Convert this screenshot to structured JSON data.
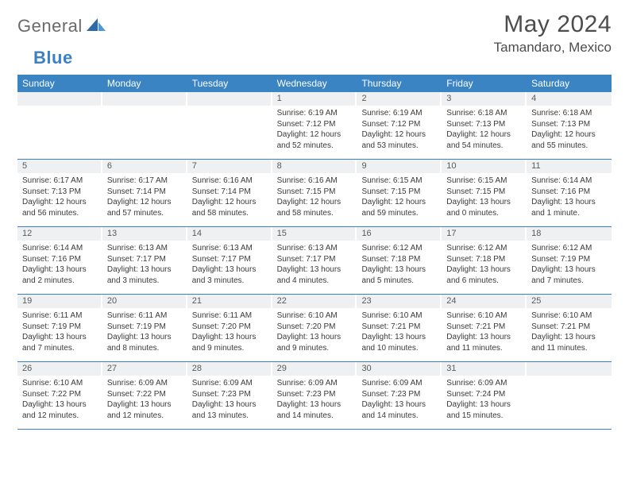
{
  "logo": {
    "text_gray": "General",
    "text_blue": "Blue"
  },
  "title": "May 2024",
  "location": "Tamandaro, Mexico",
  "colors": {
    "header_bg": "#3b84c4",
    "header_text": "#ffffff",
    "daybar_bg": "#eef0f2",
    "row_border": "#3b7fc4",
    "body_text": "#3a3a3a"
  },
  "day_names": [
    "Sunday",
    "Monday",
    "Tuesday",
    "Wednesday",
    "Thursday",
    "Friday",
    "Saturday"
  ],
  "weeks": [
    [
      null,
      null,
      null,
      {
        "n": "1",
        "sr": "6:19 AM",
        "ss": "7:12 PM",
        "dl": "12 hours and 52 minutes."
      },
      {
        "n": "2",
        "sr": "6:19 AM",
        "ss": "7:12 PM",
        "dl": "12 hours and 53 minutes."
      },
      {
        "n": "3",
        "sr": "6:18 AM",
        "ss": "7:13 PM",
        "dl": "12 hours and 54 minutes."
      },
      {
        "n": "4",
        "sr": "6:18 AM",
        "ss": "7:13 PM",
        "dl": "12 hours and 55 minutes."
      }
    ],
    [
      {
        "n": "5",
        "sr": "6:17 AM",
        "ss": "7:13 PM",
        "dl": "12 hours and 56 minutes."
      },
      {
        "n": "6",
        "sr": "6:17 AM",
        "ss": "7:14 PM",
        "dl": "12 hours and 57 minutes."
      },
      {
        "n": "7",
        "sr": "6:16 AM",
        "ss": "7:14 PM",
        "dl": "12 hours and 58 minutes."
      },
      {
        "n": "8",
        "sr": "6:16 AM",
        "ss": "7:15 PM",
        "dl": "12 hours and 58 minutes."
      },
      {
        "n": "9",
        "sr": "6:15 AM",
        "ss": "7:15 PM",
        "dl": "12 hours and 59 minutes."
      },
      {
        "n": "10",
        "sr": "6:15 AM",
        "ss": "7:15 PM",
        "dl": "13 hours and 0 minutes."
      },
      {
        "n": "11",
        "sr": "6:14 AM",
        "ss": "7:16 PM",
        "dl": "13 hours and 1 minute."
      }
    ],
    [
      {
        "n": "12",
        "sr": "6:14 AM",
        "ss": "7:16 PM",
        "dl": "13 hours and 2 minutes."
      },
      {
        "n": "13",
        "sr": "6:13 AM",
        "ss": "7:17 PM",
        "dl": "13 hours and 3 minutes."
      },
      {
        "n": "14",
        "sr": "6:13 AM",
        "ss": "7:17 PM",
        "dl": "13 hours and 3 minutes."
      },
      {
        "n": "15",
        "sr": "6:13 AM",
        "ss": "7:17 PM",
        "dl": "13 hours and 4 minutes."
      },
      {
        "n": "16",
        "sr": "6:12 AM",
        "ss": "7:18 PM",
        "dl": "13 hours and 5 minutes."
      },
      {
        "n": "17",
        "sr": "6:12 AM",
        "ss": "7:18 PM",
        "dl": "13 hours and 6 minutes."
      },
      {
        "n": "18",
        "sr": "6:12 AM",
        "ss": "7:19 PM",
        "dl": "13 hours and 7 minutes."
      }
    ],
    [
      {
        "n": "19",
        "sr": "6:11 AM",
        "ss": "7:19 PM",
        "dl": "13 hours and 7 minutes."
      },
      {
        "n": "20",
        "sr": "6:11 AM",
        "ss": "7:19 PM",
        "dl": "13 hours and 8 minutes."
      },
      {
        "n": "21",
        "sr": "6:11 AM",
        "ss": "7:20 PM",
        "dl": "13 hours and 9 minutes."
      },
      {
        "n": "22",
        "sr": "6:10 AM",
        "ss": "7:20 PM",
        "dl": "13 hours and 9 minutes."
      },
      {
        "n": "23",
        "sr": "6:10 AM",
        "ss": "7:21 PM",
        "dl": "13 hours and 10 minutes."
      },
      {
        "n": "24",
        "sr": "6:10 AM",
        "ss": "7:21 PM",
        "dl": "13 hours and 11 minutes."
      },
      {
        "n": "25",
        "sr": "6:10 AM",
        "ss": "7:21 PM",
        "dl": "13 hours and 11 minutes."
      }
    ],
    [
      {
        "n": "26",
        "sr": "6:10 AM",
        "ss": "7:22 PM",
        "dl": "13 hours and 12 minutes."
      },
      {
        "n": "27",
        "sr": "6:09 AM",
        "ss": "7:22 PM",
        "dl": "13 hours and 12 minutes."
      },
      {
        "n": "28",
        "sr": "6:09 AM",
        "ss": "7:23 PM",
        "dl": "13 hours and 13 minutes."
      },
      {
        "n": "29",
        "sr": "6:09 AM",
        "ss": "7:23 PM",
        "dl": "13 hours and 14 minutes."
      },
      {
        "n": "30",
        "sr": "6:09 AM",
        "ss": "7:23 PM",
        "dl": "13 hours and 14 minutes."
      },
      {
        "n": "31",
        "sr": "6:09 AM",
        "ss": "7:24 PM",
        "dl": "13 hours and 15 minutes."
      },
      null
    ]
  ],
  "labels": {
    "sunrise": "Sunrise: ",
    "sunset": "Sunset: ",
    "daylight": "Daylight: "
  }
}
